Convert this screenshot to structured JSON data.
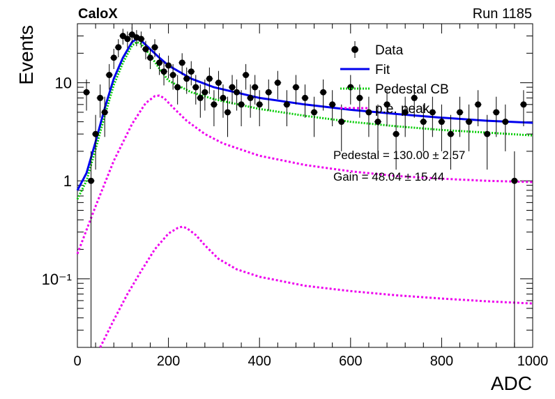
{
  "header": {
    "experiment": "CaloX",
    "run": "Run 1185"
  },
  "fit_results": {
    "pedestal": "Pedestal = 130.00 ± 2.57",
    "gain": "Gain = 48.04 ± 15.44"
  },
  "chart_data": {
    "type": "scatter",
    "title": "",
    "xlabel": "ADC",
    "ylabel": "Events",
    "xlim": [
      0,
      1000
    ],
    "ylim": [
      0.02,
      40
    ],
    "y_scale": "log",
    "grid": false,
    "legend_position": "top-right",
    "x_ticks": [
      "0",
      "200",
      "400",
      "600",
      "800",
      "1000"
    ],
    "y_ticks": [
      {
        "value": 0.1,
        "label": "10⁻¹"
      },
      {
        "value": 1,
        "label": "1"
      },
      {
        "value": 10,
        "label": "10"
      }
    ],
    "legend": [
      {
        "label": "Data",
        "style": "marker",
        "color": "#000000"
      },
      {
        "label": "Fit",
        "style": "solid",
        "color": "#0000ee"
      },
      {
        "label": "Pedestal CB",
        "style": "dotted",
        "color": "#00cc00"
      },
      {
        "label": "p.e. peak",
        "style": "dashed",
        "color": "#ee00ee"
      }
    ],
    "series": [
      {
        "name": "Data",
        "x": [
          20,
          30,
          40,
          50,
          60,
          70,
          80,
          90,
          100,
          110,
          120,
          130,
          140,
          150,
          160,
          170,
          180,
          190,
          200,
          210,
          220,
          230,
          240,
          250,
          260,
          270,
          280,
          290,
          300,
          310,
          320,
          330,
          340,
          350,
          360,
          370,
          380,
          390,
          400,
          420,
          440,
          460,
          480,
          500,
          520,
          540,
          560,
          580,
          600,
          620,
          640,
          660,
          680,
          700,
          720,
          740,
          760,
          780,
          800,
          820,
          840,
          860,
          880,
          900,
          920,
          940,
          960,
          980
        ],
        "y": [
          8,
          1,
          3,
          7,
          5,
          12,
          18,
          23,
          30,
          28,
          31,
          29,
          28,
          22,
          18,
          23,
          16,
          13,
          15,
          12,
          9,
          16,
          11,
          13,
          9,
          7,
          8,
          11,
          6,
          10,
          7,
          5,
          9,
          8,
          6,
          12,
          7,
          9,
          6,
          8,
          10,
          6,
          9,
          7,
          5,
          8,
          6,
          4,
          9,
          7,
          5,
          4,
          6,
          3,
          5,
          7,
          4,
          5,
          4,
          3,
          5,
          4,
          6,
          3,
          5,
          4,
          1,
          6
        ],
        "err": [
          2.8,
          1,
          1.7,
          2.6,
          2.2,
          3.5,
          4.2,
          4.8,
          5.5,
          5.3,
          5.6,
          5.4,
          5.3,
          4.7,
          4.2,
          4.8,
          4,
          3.6,
          3.9,
          3.5,
          3,
          4,
          3.3,
          3.6,
          3,
          2.6,
          2.8,
          3.3,
          2.4,
          3.2,
          2.6,
          2.2,
          3,
          2.8,
          2.4,
          3.5,
          2.6,
          3,
          2.4,
          2.8,
          3.2,
          2.4,
          3,
          2.6,
          2.2,
          2.8,
          2.4,
          2,
          3,
          2.6,
          2.2,
          2,
          2.4,
          1.7,
          2.2,
          2.6,
          2,
          2.2,
          2,
          1.7,
          2.2,
          2,
          2.4,
          1.7,
          2.2,
          2,
          1,
          2.4
        ],
        "color": "#000000"
      },
      {
        "name": "Fit",
        "x": [
          0,
          20,
          40,
          60,
          80,
          100,
          120,
          130,
          140,
          160,
          180,
          200,
          250,
          300,
          400,
          500,
          600,
          700,
          800,
          900,
          1000
        ],
        "y": [
          0.8,
          1.2,
          2.5,
          5.5,
          11,
          18,
          26,
          28,
          27,
          22,
          18,
          15,
          11,
          9,
          7,
          6,
          5.3,
          4.8,
          4.4,
          4.1,
          3.9
        ],
        "color": "#0000ee"
      },
      {
        "name": "Pedestal CB",
        "x": [
          0,
          20,
          40,
          60,
          80,
          100,
          120,
          130,
          140,
          160,
          180,
          200,
          250,
          300,
          400,
          500,
          600,
          700,
          800,
          900,
          1000
        ],
        "y": [
          0.65,
          1.0,
          2.1,
          4.6,
          9.5,
          16,
          24,
          26,
          25,
          19,
          14,
          10.5,
          8,
          6.8,
          5.4,
          4.6,
          4.0,
          3.6,
          3.3,
          3.1,
          2.9
        ],
        "color": "#00cc00"
      },
      {
        "name": "p.e. peak (1 p.e.)",
        "x": [
          0,
          40,
          80,
          120,
          150,
          170,
          180,
          190,
          210,
          240,
          280,
          320,
          400,
          500,
          600,
          700,
          800,
          900,
          1000
        ],
        "y": [
          0.18,
          0.55,
          1.6,
          3.8,
          6.2,
          7.3,
          7.4,
          7.0,
          5.6,
          4.1,
          3.0,
          2.4,
          1.8,
          1.45,
          1.25,
          1.12,
          1.05,
          1.0,
          0.97
        ],
        "color": "#ee00ee"
      },
      {
        "name": "p.e. peak (2 p.e.)",
        "x": [
          50,
          80,
          110,
          140,
          170,
          200,
          220,
          230,
          240,
          260,
          280,
          310,
          350,
          400,
          500,
          600,
          700,
          800,
          900,
          1000
        ],
        "y": [
          0.02,
          0.038,
          0.07,
          0.12,
          0.2,
          0.29,
          0.33,
          0.34,
          0.33,
          0.28,
          0.22,
          0.16,
          0.125,
          0.105,
          0.085,
          0.075,
          0.068,
          0.063,
          0.059,
          0.056
        ],
        "color": "#ee00ee"
      }
    ]
  }
}
